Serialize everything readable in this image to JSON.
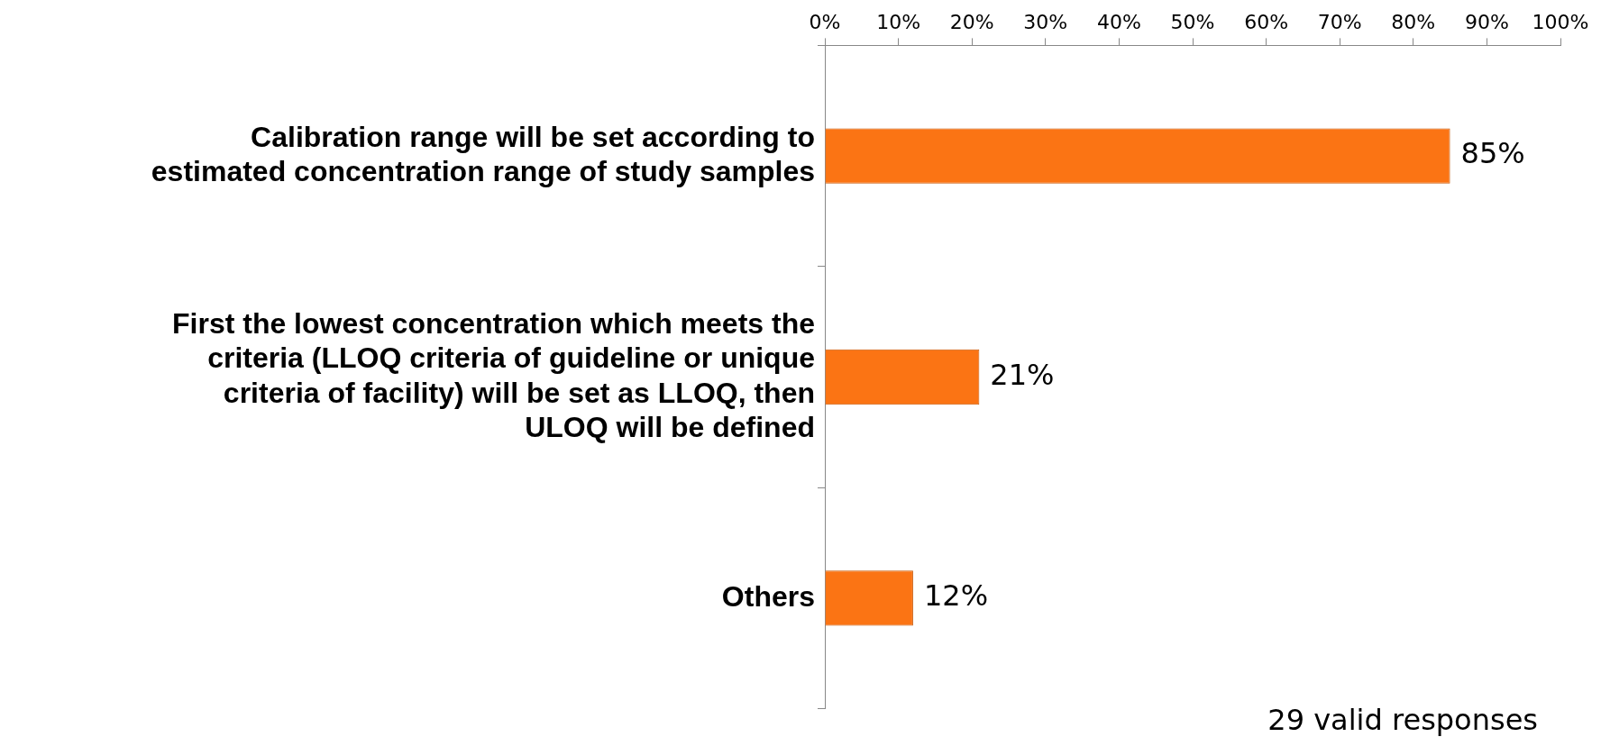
{
  "chart_data": {
    "type": "bar",
    "orientation": "horizontal",
    "categories": [
      "Calibration range will be set according to estimated concentration range of study samples",
      "First the lowest concentration which meets the criteria (LLOQ criteria of guideline or unique criteria of facility) will be set as LLOQ, then ULOQ will be defined",
      "Others"
    ],
    "values": [
      85,
      21,
      12
    ],
    "value_labels": [
      "85%",
      "21%",
      "12%"
    ],
    "color": "#fb7414",
    "xlim": [
      0,
      100
    ],
    "xticks": [
      {
        "value": 0,
        "label": "0%"
      },
      {
        "value": 10,
        "label": "10%"
      },
      {
        "value": 20,
        "label": "20%"
      },
      {
        "value": 30,
        "label": "30%"
      },
      {
        "value": 40,
        "label": "40%"
      },
      {
        "value": 50,
        "label": "50%"
      },
      {
        "value": 60,
        "label": "60%"
      },
      {
        "value": 70,
        "label": "70%"
      },
      {
        "value": 80,
        "label": "80%"
      },
      {
        "value": 90,
        "label": "90%"
      },
      {
        "value": 100,
        "label": "100%"
      }
    ],
    "grid": false,
    "legend": false,
    "annotations": [
      "29 valid responses"
    ]
  }
}
